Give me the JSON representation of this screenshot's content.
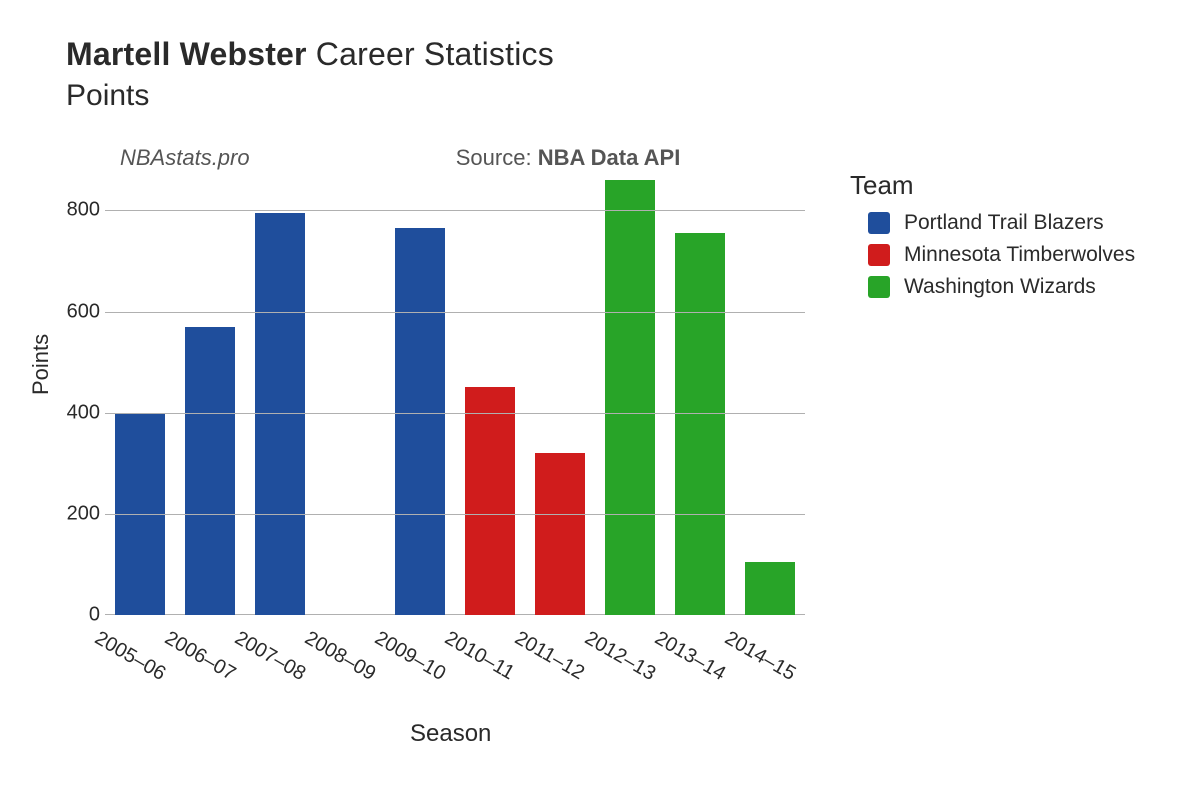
{
  "title": {
    "player": "Martell Webster",
    "suffix": "Career Statistics",
    "metric": "Points"
  },
  "credits": {
    "site": "NBAstats.pro",
    "source_label": "Source:",
    "source_name": "NBA Data API"
  },
  "chart": {
    "type": "bar",
    "ylabel": "Points",
    "xlabel": "Season",
    "ylim": [
      0,
      870
    ],
    "ytick_step": 200,
    "yticks": [
      0,
      200,
      400,
      600,
      800
    ],
    "grid_color": "#b0b0b0",
    "background_color": "#ffffff",
    "bar_width": 0.72,
    "tick_fontsize": 20,
    "label_fontsize": 22,
    "categories": [
      "2005–06",
      "2006–07",
      "2007–08",
      "2008–09",
      "2009–10",
      "2010–11",
      "2011–12",
      "2012–13",
      "2013–14",
      "2014–15"
    ],
    "values": [
      400,
      570,
      795,
      0,
      765,
      450,
      320,
      860,
      755,
      105
    ],
    "team_index": [
      0,
      0,
      0,
      0,
      0,
      1,
      1,
      2,
      2,
      2
    ],
    "team_colors": [
      "#1f4e9c",
      "#d01c1c",
      "#28a428"
    ]
  },
  "legend": {
    "title": "Team",
    "items": [
      {
        "label": "Portland Trail Blazers",
        "color": "#1f4e9c"
      },
      {
        "label": "Minnesota Timberwolves",
        "color": "#d01c1c"
      },
      {
        "label": "Washington Wizards",
        "color": "#28a428"
      }
    ]
  }
}
